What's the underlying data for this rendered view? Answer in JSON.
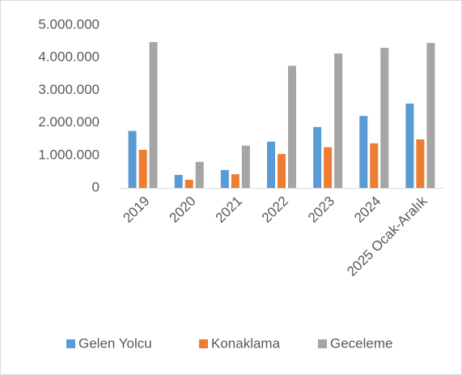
{
  "chart_data": {
    "type": "bar",
    "categories": [
      "2019",
      "2020",
      "2021",
      "2022",
      "2023",
      "2024",
      "2025 Ocak-Aralık"
    ],
    "series": [
      {
        "name": "Gelen Yolcu",
        "color": "#5b9bd5",
        "values": [
          1750000,
          400000,
          550000,
          1420000,
          1870000,
          2210000,
          2590000
        ]
      },
      {
        "name": "Konaklama",
        "color": "#ed7d31",
        "values": [
          1170000,
          250000,
          420000,
          1040000,
          1250000,
          1370000,
          1490000
        ]
      },
      {
        "name": "Geceleme",
        "color": "#a5a5a5",
        "values": [
          4480000,
          800000,
          1300000,
          3750000,
          4130000,
          4300000,
          4450000
        ]
      }
    ],
    "ylim": [
      0,
      5000000
    ],
    "yticks": [
      0,
      {
        "value": 1000000,
        "label": "1.000.000"
      },
      {
        "value": 2000000,
        "label": "2.000.000"
      },
      {
        "value": 3000000,
        "label": "3.000.000"
      },
      {
        "value": 4000000,
        "label": "4.000.000"
      },
      {
        "value": 5000000,
        "label": "5.000.000"
      }
    ],
    "grid": false,
    "legend": "bottom"
  }
}
